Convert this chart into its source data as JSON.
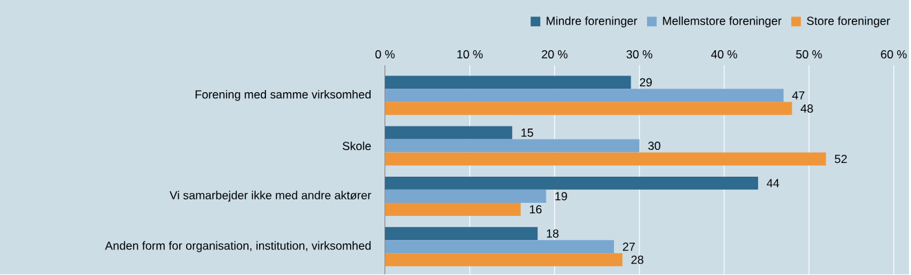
{
  "chart_data": {
    "type": "bar",
    "orientation": "horizontal",
    "categories": [
      "Forening med samme virksomhed",
      "Skole",
      "Vi samarbejder ikke med andre aktører",
      "Anden form for organisation, institution, virksomhed"
    ],
    "series": [
      {
        "name": "Mindre foreninger",
        "color": "#2f6a8f",
        "values": [
          29,
          15,
          44,
          18
        ]
      },
      {
        "name": "Mellemstore foreninger",
        "color": "#7aa7d0",
        "values": [
          47,
          30,
          19,
          27
        ]
      },
      {
        "name": "Store foreninger",
        "color": "#f0963a",
        "values": [
          48,
          52,
          16,
          28
        ]
      }
    ],
    "xlim": [
      0,
      60
    ],
    "xticks": [
      {
        "value": 0,
        "label": "0 %"
      },
      {
        "value": 10,
        "label": "10 %"
      },
      {
        "value": 20,
        "label": "20 %"
      },
      {
        "value": 30,
        "label": "30 %"
      },
      {
        "value": 40,
        "label": "40 %"
      },
      {
        "value": 50,
        "label": "50 %"
      },
      {
        "value": 60,
        "label": "60 %"
      }
    ],
    "grid": "x",
    "legend": "top right",
    "data_labels": true
  }
}
